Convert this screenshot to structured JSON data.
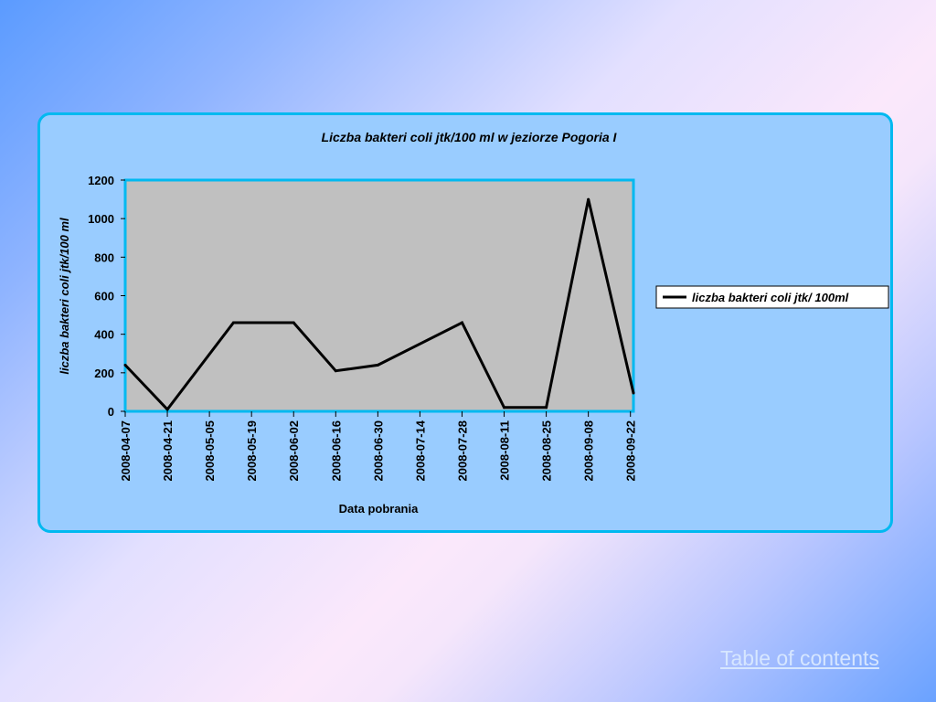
{
  "page": {
    "toc_link": "Table of contents"
  },
  "chart_data": {
    "type": "line",
    "title": "Liczba bakteri coli jtk/100 ml w jeziorze Pogoria I",
    "xlabel": "Data pobrania",
    "ylabel": "liczba bakteri coli jtk/100 ml",
    "x_tick_labels": [
      "2008-04-07",
      "2008-04-21",
      "2008-05-05",
      "2008-05-19",
      "2008-06-02",
      "2008-06-16",
      "2008-06-30",
      "2008-07-14",
      "2008-07-28",
      "2008-08-11",
      "2008-08-25",
      "2008-09-08",
      "2008-09-22"
    ],
    "y_tick_labels": [
      "0",
      "200",
      "400",
      "600",
      "800",
      "1000",
      "1200"
    ],
    "ylim": [
      0,
      1200
    ],
    "x_range": [
      "2008-04-07",
      "2008-09-23"
    ],
    "grid": false,
    "legend_position": "right",
    "colors": {
      "panel": "#99ccff",
      "plot_area": "#c0c0c0",
      "border": "#00b9f0",
      "line": "#000000"
    },
    "series": [
      {
        "name": "liczba bakteri coli jtk/ 100ml",
        "x": [
          "2008-04-07",
          "2008-04-21",
          "2008-05-13",
          "2008-06-02",
          "2008-06-16",
          "2008-06-30",
          "2008-07-28",
          "2008-08-11",
          "2008-08-25",
          "2008-09-08",
          "2008-09-23"
        ],
        "values": [
          240,
          10,
          460,
          460,
          210,
          240,
          460,
          20,
          20,
          1100,
          95
        ]
      }
    ]
  }
}
